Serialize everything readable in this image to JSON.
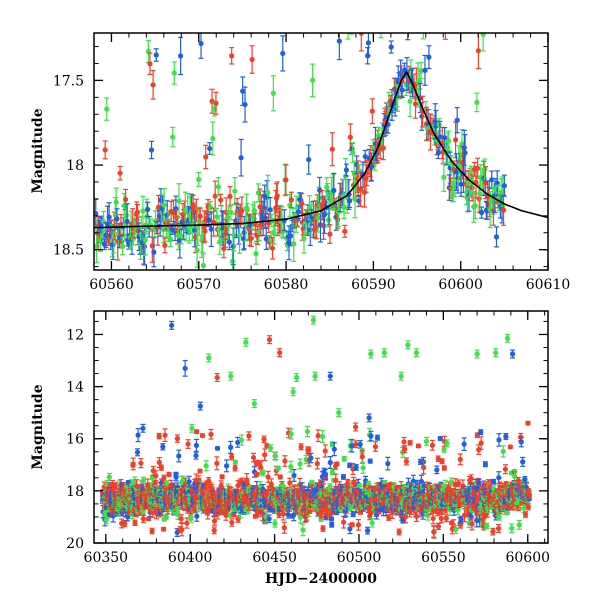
{
  "chart_data": [
    {
      "type": "scatter",
      "ylabel": "Magnitude",
      "xlabel": "",
      "xlim": [
        60558,
        60610
      ],
      "ylim": [
        18.62,
        17.22
      ],
      "y_inverted": true,
      "xticks": [
        60560,
        60570,
        60580,
        60590,
        60600,
        60610
      ],
      "yticks": [
        17.5,
        18,
        18.5
      ],
      "ytick_labels": [
        "17.5",
        "18",
        "18.5"
      ],
      "grid": false,
      "colors": {
        "blue": "#1f5fe0",
        "red": "#f0402a",
        "green": "#3fe04a",
        "model": "#000000"
      },
      "model_curve": {
        "description": "microlensing-like peak",
        "points": [
          [
            60558,
            18.37
          ],
          [
            60565,
            18.36
          ],
          [
            60570,
            18.355
          ],
          [
            60575,
            18.345
          ],
          [
            60580,
            18.32
          ],
          [
            60584,
            18.27
          ],
          [
            60587,
            18.18
          ],
          [
            60589,
            18.05
          ],
          [
            60590.5,
            17.9
          ],
          [
            60591.5,
            17.75
          ],
          [
            60592.5,
            17.6
          ],
          [
            60593.2,
            17.5
          ],
          [
            60593.8,
            17.45
          ],
          [
            60594.5,
            17.52
          ],
          [
            60595.5,
            17.65
          ],
          [
            60597,
            17.82
          ],
          [
            60599,
            17.98
          ],
          [
            60601,
            18.09
          ],
          [
            60603,
            18.17
          ],
          [
            60605,
            18.23
          ],
          [
            60607,
            18.27
          ],
          [
            60610,
            18.31
          ]
        ]
      }
    },
    {
      "type": "scatter",
      "xlabel": "HJD−2400000",
      "ylabel": "Magnitude",
      "xlim": [
        60343,
        60612
      ],
      "ylim": [
        20,
        11.1
      ],
      "y_inverted": true,
      "xticks": [
        60350,
        60400,
        60450,
        60500,
        60550,
        60600
      ],
      "yticks": [
        12,
        14,
        16,
        18,
        20
      ],
      "ytick_labels": [
        "12",
        "14",
        "16",
        "18",
        "20"
      ],
      "grid": false,
      "colors": {
        "blue": "#1f5fe0",
        "red": "#f0402a",
        "green": "#3fe04a"
      },
      "outliers": [
        {
          "x": 60389,
          "y": 11.65,
          "color": "blue"
        },
        {
          "x": 60473,
          "y": 11.45,
          "color": "green"
        },
        {
          "x": 60397,
          "y": 13.3,
          "color": "blue",
          "err": 0.3
        },
        {
          "x": 60411,
          "y": 12.9,
          "color": "green"
        },
        {
          "x": 60416,
          "y": 13.65,
          "color": "red"
        },
        {
          "x": 60424,
          "y": 13.6,
          "color": "green"
        },
        {
          "x": 60433,
          "y": 12.3,
          "color": "green"
        },
        {
          "x": 60447,
          "y": 12.2,
          "color": "red"
        },
        {
          "x": 60453,
          "y": 12.7,
          "color": "red"
        },
        {
          "x": 60463,
          "y": 13.65,
          "color": "green"
        },
        {
          "x": 60474,
          "y": 13.6,
          "color": "green"
        },
        {
          "x": 60483,
          "y": 13.6,
          "color": "blue"
        },
        {
          "x": 60507,
          "y": 12.75,
          "color": "green"
        },
        {
          "x": 60515,
          "y": 12.7,
          "color": "green"
        },
        {
          "x": 60525,
          "y": 13.6,
          "color": "green"
        },
        {
          "x": 60529,
          "y": 12.4,
          "color": "green"
        },
        {
          "x": 60534,
          "y": 12.7,
          "color": "green"
        },
        {
          "x": 60570,
          "y": 12.75,
          "color": "green"
        },
        {
          "x": 60581,
          "y": 12.7,
          "color": "green"
        },
        {
          "x": 60588,
          "y": 12.15,
          "color": "green"
        },
        {
          "x": 60591,
          "y": 12.75,
          "color": "blue"
        },
        {
          "x": 60438,
          "y": 14.65,
          "color": "green"
        },
        {
          "x": 60406,
          "y": 14.75,
          "color": "blue"
        },
        {
          "x": 60461,
          "y": 14.2,
          "color": "green"
        },
        {
          "x": 60372,
          "y": 15.6,
          "color": "blue"
        },
        {
          "x": 60401,
          "y": 15.6,
          "color": "green"
        },
        {
          "x": 60488,
          "y": 15.0,
          "color": "green"
        },
        {
          "x": 60506,
          "y": 15.2,
          "color": "blue"
        },
        {
          "x": 60498,
          "y": 15.55,
          "color": "red"
        },
        {
          "x": 60540,
          "y": 16.1,
          "color": "green"
        }
      ]
    }
  ]
}
